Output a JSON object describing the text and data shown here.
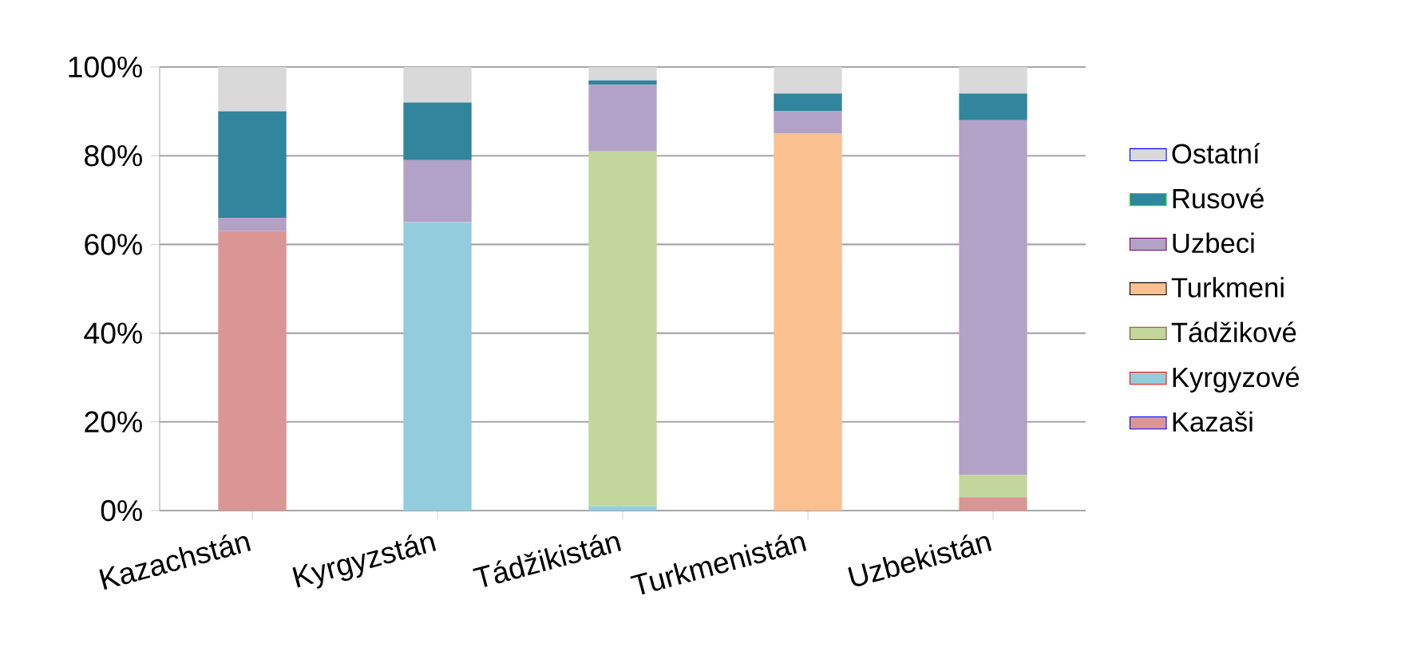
{
  "chart_data": {
    "type": "bar",
    "stacked": true,
    "categories": [
      "Kazachstán",
      "Kyrgyzstán",
      "Tádžikistán",
      "Turkmenistán",
      "Uzbekistán"
    ],
    "series": [
      {
        "name": "Kazaši",
        "color": "#d99694",
        "values": [
          63,
          0,
          0,
          0,
          3
        ]
      },
      {
        "name": "Kyrgyzové",
        "color": "#93cddd",
        "values": [
          0,
          65,
          1,
          0,
          0
        ]
      },
      {
        "name": "Tádžikové",
        "color": "#c3d69b",
        "values": [
          0,
          0,
          80,
          0,
          5
        ]
      },
      {
        "name": "Turkmeni",
        "color": "#fac090",
        "values": [
          0,
          0,
          0,
          85,
          0
        ]
      },
      {
        "name": "Uzbeci",
        "color": "#b3a2c7",
        "values": [
          3,
          14,
          15,
          5,
          80
        ]
      },
      {
        "name": "Rusové",
        "color": "#31859c",
        "values": [
          24,
          13,
          1,
          4,
          6
        ]
      },
      {
        "name": "Ostatní",
        "color": "#d9d9d9",
        "values": [
          10,
          8,
          3,
          6,
          6
        ]
      }
    ],
    "ylim": [
      0,
      100
    ],
    "yticks": [
      {
        "value": 0,
        "label": "0%"
      },
      {
        "value": 20,
        "label": "20%"
      },
      {
        "value": 40,
        "label": "40%"
      },
      {
        "value": 60,
        "label": "60%"
      },
      {
        "value": 80,
        "label": "80%"
      },
      {
        "value": 100,
        "label": "100%"
      }
    ],
    "grid": "y",
    "legend": "right"
  }
}
